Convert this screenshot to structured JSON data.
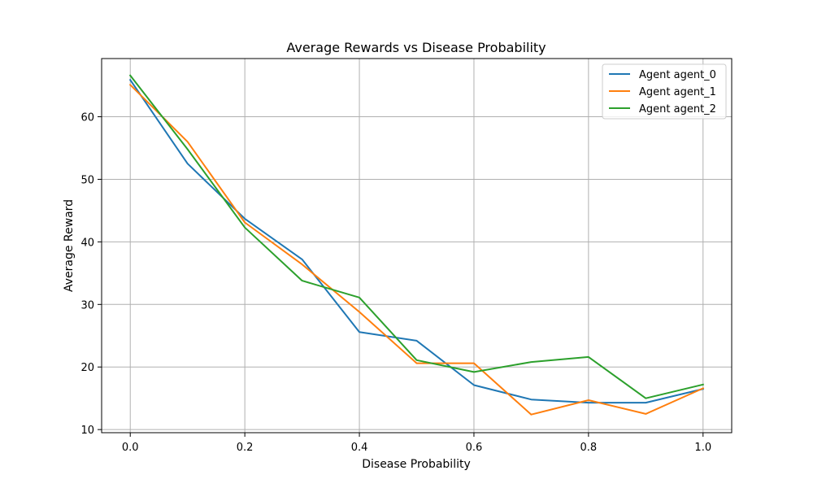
{
  "chart_data": {
    "type": "line",
    "title": "Average Rewards vs Disease Probability",
    "xlabel": "Disease Probability",
    "ylabel": "Average Reward",
    "xlim": [
      -0.05,
      1.05
    ],
    "ylim": [
      9.5,
      69.3
    ],
    "xticks": [
      0.0,
      0.2,
      0.4,
      0.6,
      0.8,
      1.0
    ],
    "xtick_labels": [
      "0.0",
      "0.2",
      "0.4",
      "0.6",
      "0.8",
      "1.0"
    ],
    "yticks": [
      10,
      20,
      30,
      40,
      50,
      60
    ],
    "ytick_labels": [
      "10",
      "20",
      "30",
      "40",
      "50",
      "60"
    ],
    "grid": true,
    "legend_position": "top-right",
    "x": [
      0.0,
      0.1,
      0.2,
      0.3,
      0.4,
      0.5,
      0.6,
      0.7,
      0.8,
      0.9,
      1.0
    ],
    "series": [
      {
        "name": "Agent agent_0",
        "color": "#1f77b4",
        "values": [
          65.9,
          52.5,
          43.7,
          37.2,
          25.6,
          24.2,
          17.1,
          14.8,
          14.3,
          14.3,
          16.5
        ]
      },
      {
        "name": "Agent agent_1",
        "color": "#ff7f0e",
        "values": [
          65.1,
          56.0,
          43.1,
          36.4,
          28.8,
          20.6,
          20.6,
          12.4,
          14.7,
          12.5,
          16.6
        ]
      },
      {
        "name": "Agent agent_2",
        "color": "#2ca02c",
        "values": [
          66.6,
          54.8,
          42.3,
          33.8,
          31.1,
          21.1,
          19.2,
          20.8,
          21.6,
          15.0,
          17.2
        ]
      }
    ]
  }
}
